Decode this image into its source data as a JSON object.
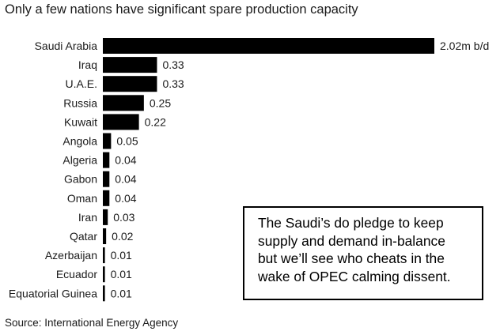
{
  "chart_data": {
    "type": "bar",
    "orientation": "horizontal",
    "title": "Only a few nations have significant spare production capacity",
    "categories": [
      "Saudi Arabia",
      "Iraq",
      "U.A.E.",
      "Russia",
      "Kuwait",
      "Angola",
      "Algeria",
      "Gabon",
      "Oman",
      "Iran",
      "Qatar",
      "Azerbaijan",
      "Ecuador",
      "Equatorial Guinea"
    ],
    "values": [
      2.02,
      0.33,
      0.33,
      0.25,
      0.22,
      0.05,
      0.04,
      0.04,
      0.04,
      0.03,
      0.02,
      0.01,
      0.01,
      0.01
    ],
    "value_labels": [
      "2.02m b/d",
      "0.33",
      "0.33",
      "0.25",
      "0.22",
      "0.05",
      "0.04",
      "0.04",
      "0.04",
      "0.03",
      "0.02",
      "0.01",
      "0.01",
      "0.01"
    ],
    "xlabel": "",
    "ylabel": "",
    "xlim": [
      0,
      2.02
    ],
    "grid": false,
    "bar_color": "#000000",
    "source": "Source: International Energy Agency"
  },
  "annotation": {
    "lines": [
      "The Saudi’s do pledge to keep",
      "supply and demand in-balance",
      "but we’ll see who cheats in the",
      "wake of OPEC calming dissent."
    ]
  }
}
